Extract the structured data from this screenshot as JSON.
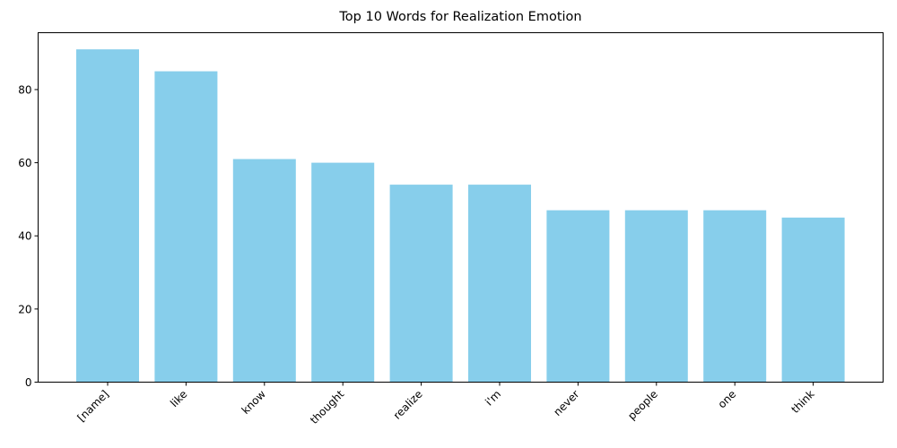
{
  "chart_data": {
    "type": "bar",
    "title": "Top 10 Words for Realization Emotion",
    "xlabel": "",
    "ylabel": "",
    "categories": [
      "[name]",
      "like",
      "know",
      "thought",
      "realize",
      "i'm",
      "never",
      "people",
      "one",
      "think"
    ],
    "values": [
      91,
      85,
      61,
      60,
      54,
      54,
      47,
      47,
      47,
      45
    ],
    "ylim": [
      0,
      95.55
    ],
    "yticks": [
      0,
      20,
      40,
      60,
      80
    ],
    "bar_color": "#87ceeb",
    "grid": false,
    "legend": "none"
  }
}
